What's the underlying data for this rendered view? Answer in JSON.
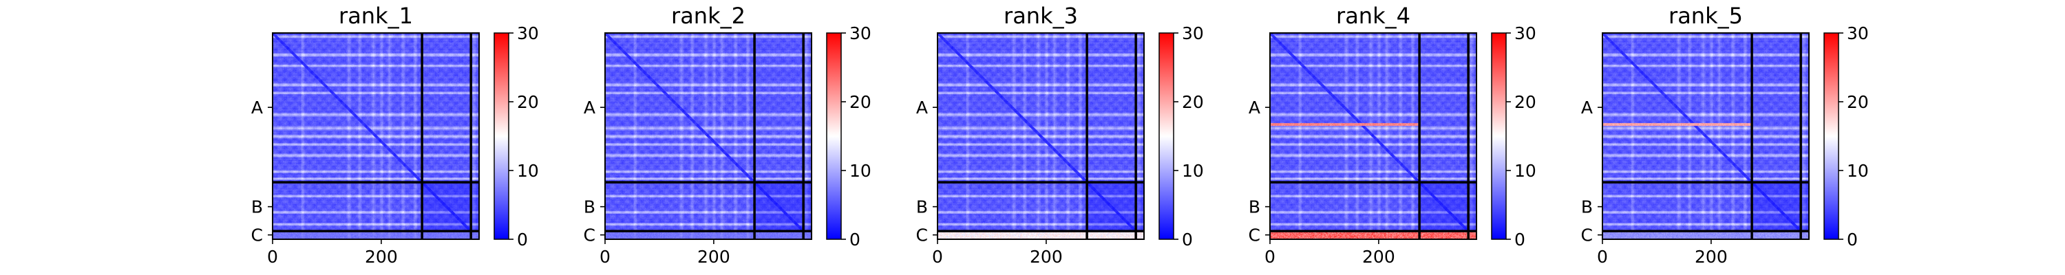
{
  "chart_data": {
    "type": "heatmap",
    "colormap": {
      "name": "bwr",
      "low": "#0000ff",
      "mid": "#ffffff",
      "high": "#ff0000",
      "vmin": 0,
      "vmax": 30
    },
    "matrix_size": 380,
    "chain_boundaries": [
      275,
      365
    ],
    "chains": [
      {
        "label": "A",
        "center": 137
      },
      {
        "label": "B",
        "center": 320
      },
      {
        "label": "C",
        "center": 372
      }
    ],
    "x_ticks": [
      {
        "value": 0,
        "label": "0"
      },
      {
        "value": 200,
        "label": "200"
      }
    ],
    "colorbar_ticks": [
      {
        "value": 0,
        "label": "0"
      },
      {
        "value": 10,
        "label": "10"
      },
      {
        "value": 20,
        "label": "20"
      },
      {
        "value": 30,
        "label": "30"
      }
    ],
    "panels": [
      {
        "title": "rank_1",
        "chain_c_error": 8,
        "band_error": 0
      },
      {
        "title": "rank_2",
        "chain_c_error": 8,
        "band_error": 0
      },
      {
        "title": "rank_3",
        "chain_c_error": 18,
        "band_error": 0
      },
      {
        "title": "rank_4",
        "chain_c_error": 28,
        "band_error": 24
      },
      {
        "title": "rank_5",
        "chain_c_error": 10,
        "band_error": 22
      }
    ]
  }
}
